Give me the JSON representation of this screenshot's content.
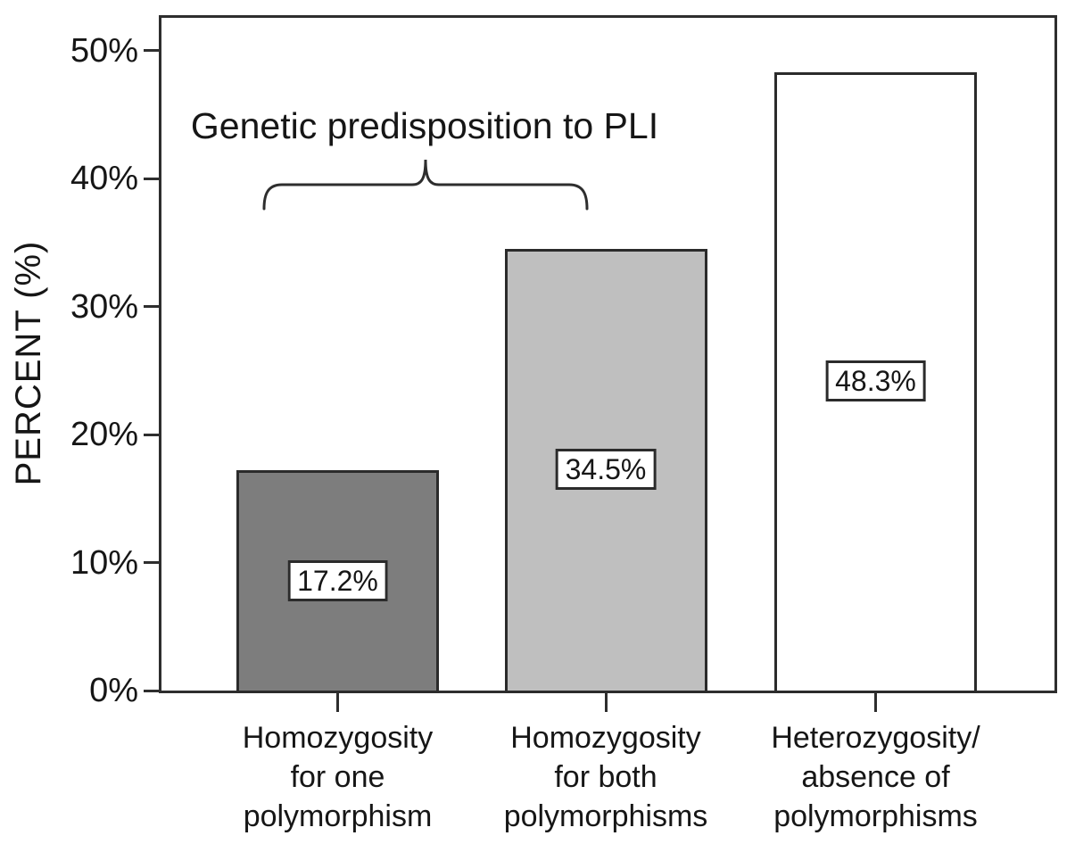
{
  "chart_data": {
    "type": "bar",
    "title": "",
    "xlabel": "",
    "ylabel": "PERCENT (%)",
    "ylim": [
      0,
      52.8
    ],
    "yticks": [
      "0%",
      "10%",
      "20%",
      "30%",
      "40%",
      "50%"
    ],
    "categories": [
      "Homozygosity\nfor one\npolymorphism",
      "Homozygosity\nfor both\npolymorphisms",
      "Heterozygosity/\nabsence of\npolymorphisms"
    ],
    "values": [
      17.2,
      34.5,
      48.3
    ],
    "value_labels": [
      "17.2%",
      "34.5%",
      "48.3%"
    ],
    "bar_colors": [
      "#7d7d7d",
      "#bfbfbf",
      "#ffffff"
    ],
    "bar_border_color": "#2b2b2b",
    "annotation": {
      "text": "Genetic predisposition to PLI",
      "spans": [
        "Homozygosity for one polymorphism",
        "Homozygosity for both polymorphisms"
      ]
    },
    "grid": false,
    "legend": false
  }
}
